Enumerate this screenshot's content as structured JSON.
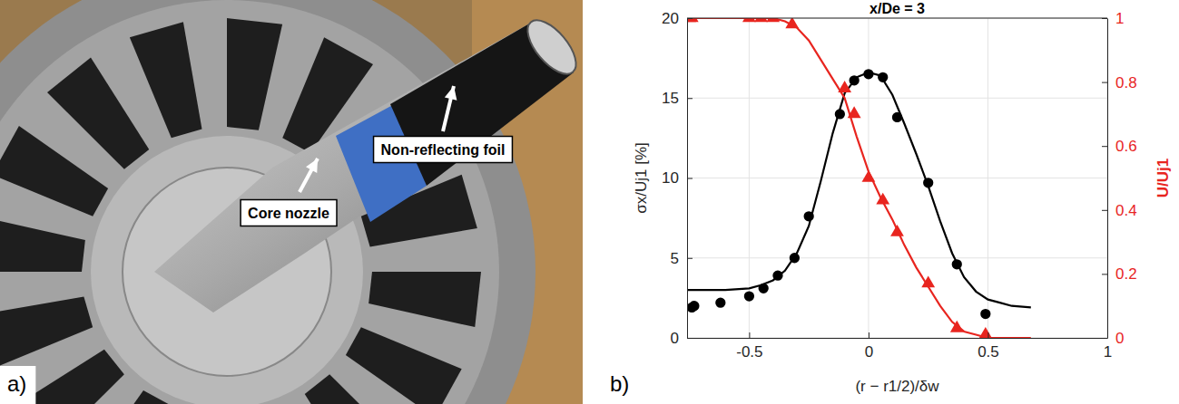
{
  "photo": {
    "panel_label": "a)",
    "annotations": [
      "Non-reflecting foil",
      "Core nozzle"
    ]
  },
  "chart_data": {
    "type": "line",
    "panel_label": "b)",
    "title": "x/De = 3",
    "x_label": "(r − r1/2)/δw",
    "y_label": "σx/Uj1 [%]",
    "y2_label": "U/Uj1",
    "xlim": [
      -0.76,
      1
    ],
    "xticks": [
      -0.5,
      0,
      0.5,
      1
    ],
    "ylim": [
      0,
      20
    ],
    "yticks": [
      0,
      5,
      10,
      15,
      20
    ],
    "y2lim": [
      0,
      1
    ],
    "y2ticks": [
      0,
      0.2,
      0.4,
      0.6,
      0.8,
      1
    ],
    "grid": true,
    "series": [
      {
        "type": "line",
        "color": "#000000",
        "line_style": "solid",
        "x": [
          -0.76,
          -0.7,
          -0.6,
          -0.5,
          -0.45,
          -0.4,
          -0.35,
          -0.3,
          -0.25,
          -0.2,
          -0.15,
          -0.1,
          -0.05,
          0,
          0.05,
          0.1,
          0.15,
          0.2,
          0.25,
          0.3,
          0.35,
          0.4,
          0.45,
          0.5,
          0.55,
          0.6,
          0.68
        ],
        "values": [
          3.0,
          3.0,
          3.0,
          3.1,
          3.3,
          3.6,
          4.2,
          5.3,
          7.0,
          9.8,
          12.8,
          15.3,
          16.3,
          16.6,
          16.4,
          15.2,
          13.4,
          11.5,
          9.5,
          7.3,
          5.3,
          3.8,
          2.9,
          2.4,
          2.2,
          2.0,
          1.9
        ]
      },
      {
        "type": "scatter",
        "color": "#000000",
        "marker": "circle",
        "x": [
          -0.74,
          -0.73,
          -0.62,
          -0.5,
          -0.44,
          -0.38,
          -0.31,
          -0.25,
          -0.12,
          -0.06,
          0,
          0.06,
          0.12,
          0.25,
          0.37,
          0.49
        ],
        "values": [
          1.9,
          2.0,
          2.2,
          2.6,
          3.1,
          3.9,
          5.0,
          7.6,
          14.0,
          16.1,
          16.5,
          16.3,
          13.8,
          9.7,
          4.6,
          1.5
        ]
      },
      {
        "type": "line",
        "color": "#e8251f",
        "line_style": "solid",
        "axis": "y2",
        "x": [
          -0.76,
          -0.5,
          -0.4,
          -0.35,
          -0.3,
          -0.25,
          -0.2,
          -0.15,
          -0.1,
          -0.05,
          0,
          0.05,
          0.1,
          0.15,
          0.2,
          0.25,
          0.3,
          0.35,
          0.4,
          0.45,
          0.5,
          0.6,
          0.68
        ],
        "values": [
          1.0,
          1.0,
          1.0,
          0.99,
          0.97,
          0.93,
          0.87,
          0.81,
          0.75,
          0.63,
          0.52,
          0.44,
          0.37,
          0.29,
          0.22,
          0.16,
          0.1,
          0.05,
          0.02,
          0.01,
          0.0,
          0.0,
          0.0
        ]
      },
      {
        "type": "scatter",
        "color": "#e8251f",
        "marker": "triangle",
        "axis": "y2",
        "x": [
          -0.75,
          -0.74,
          -0.5,
          -0.45,
          -0.4,
          -0.32,
          -0.1,
          -0.06,
          0,
          0.06,
          0.12,
          0.25,
          0.37,
          0.49
        ],
        "values": [
          1.0,
          1.0,
          1.0,
          1.0,
          1.0,
          0.98,
          0.78,
          0.7,
          0.5,
          0.43,
          0.33,
          0.17,
          0.03,
          0.01
        ]
      }
    ]
  }
}
